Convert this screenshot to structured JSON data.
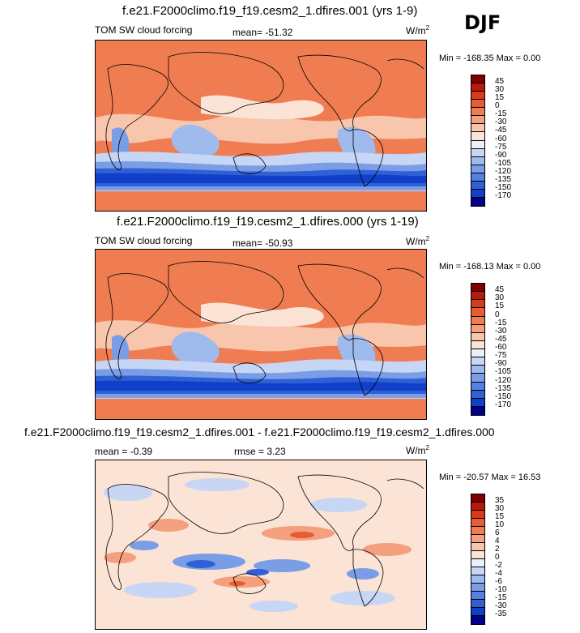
{
  "season": "DJF",
  "panels": [
    {
      "title": "f.e21.F2000climo.f19_f19.cesm2_1.dfires.001 (yrs 1-9)",
      "left_label": "TOM SW cloud forcing",
      "center_label": "mean= -51.32",
      "units": "W/m",
      "units_sup": "2",
      "minmax": "Min = -168.35 Max =   0.00",
      "colorbar": {
        "levels": [
          "45",
          "30",
          "15",
          "0",
          "-15",
          "-30",
          "-45",
          "-60",
          "-75",
          "-90",
          "-105",
          "-120",
          "-135",
          "-150",
          "-170"
        ],
        "colors": [
          "#7f0000",
          "#b81a0a",
          "#d63b1a",
          "#e85c32",
          "#f07c52",
          "#f4a07e",
          "#f8c5ad",
          "#fbe3d5",
          "#eaf0fb",
          "#c6d6f4",
          "#9fbbee",
          "#7a9ee6",
          "#5580de",
          "#3060d6",
          "#1040c8",
          "#00008a"
        ]
      }
    },
    {
      "title": "f.e21.F2000climo.f19_f19.cesm2_1.dfires.000 (yrs 1-19)",
      "left_label": "TOM SW cloud forcing",
      "center_label": "mean= -50.93",
      "units": "W/m",
      "units_sup": "2",
      "minmax": "Min = -168.13 Max =   0.00",
      "colorbar": {
        "levels": [
          "45",
          "30",
          "15",
          "0",
          "-15",
          "-30",
          "-45",
          "-60",
          "-75",
          "-90",
          "-105",
          "-120",
          "-135",
          "-150",
          "-170"
        ],
        "colors": [
          "#7f0000",
          "#b81a0a",
          "#d63b1a",
          "#e85c32",
          "#f07c52",
          "#f4a07e",
          "#f8c5ad",
          "#fbe3d5",
          "#eaf0fb",
          "#c6d6f4",
          "#9fbbee",
          "#7a9ee6",
          "#5580de",
          "#3060d6",
          "#1040c8",
          "#00008a"
        ]
      }
    },
    {
      "title": "f.e21.F2000climo.f19_f19.cesm2_1.dfires.001 - f.e21.F2000climo.f19_f19.cesm2_1.dfires.000",
      "left_label": "mean =  -0.39",
      "center_label": "rmse =   3.23",
      "units": "W/m",
      "units_sup": "2",
      "minmax": "Min = -20.57 Max =  16.53",
      "colorbar": {
        "levels": [
          "35",
          "30",
          "15",
          "10",
          "6",
          "4",
          "2",
          "0",
          "-2",
          "-4",
          "-6",
          "-10",
          "-15",
          "-30",
          "-35"
        ],
        "colors": [
          "#7f0000",
          "#b81a0a",
          "#d63b1a",
          "#e85c32",
          "#f07c52",
          "#f4a07e",
          "#f8c5ad",
          "#fbe3d5",
          "#eaf0fb",
          "#c6d6f4",
          "#9fbbee",
          "#7a9ee6",
          "#5580de",
          "#3060d6",
          "#1040c8",
          "#00008a"
        ]
      }
    }
  ]
}
